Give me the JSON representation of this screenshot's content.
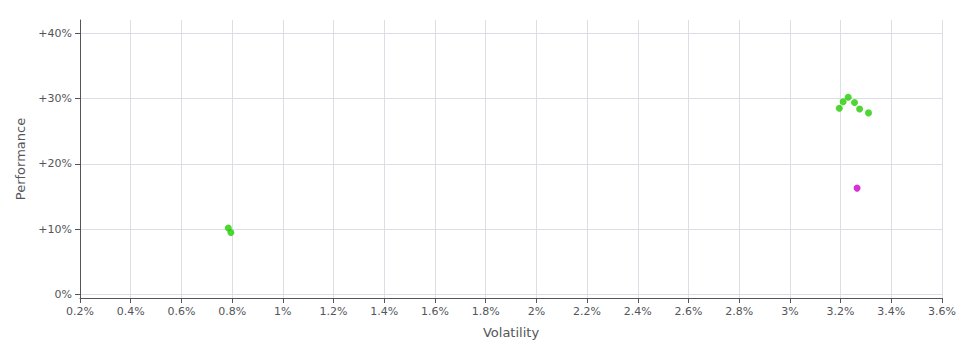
{
  "chart_data": {
    "type": "scatter",
    "xlabel": "Volatility",
    "ylabel": "Performance",
    "series": [
      {
        "color": "#22cc00",
        "x": [
          0.00785,
          0.00795,
          0.03195,
          0.0321,
          0.0323,
          0.03255,
          0.03275,
          0.0331
        ],
        "values": [
          0.102,
          0.095,
          0.285,
          0.295,
          0.302,
          0.294,
          0.284,
          0.278
        ]
      },
      {
        "color": "#cc00cc",
        "x": [
          0.03265
        ],
        "values": [
          0.163
        ]
      }
    ],
    "xlim": [
      0.002,
      0.036
    ],
    "xticks": [
      {
        "value": 0.002,
        "label": "0.2%"
      },
      {
        "value": 0.004,
        "label": "0.4%"
      },
      {
        "value": 0.006,
        "label": "0.6%"
      },
      {
        "value": 0.008,
        "label": "0.8%"
      },
      {
        "value": 0.01,
        "label": "1%"
      },
      {
        "value": 0.012,
        "label": "1.2%"
      },
      {
        "value": 0.014,
        "label": "1.4%"
      },
      {
        "value": 0.016,
        "label": "1.6%"
      },
      {
        "value": 0.018,
        "label": "1.8%"
      },
      {
        "value": 0.02,
        "label": "2%"
      },
      {
        "value": 0.022,
        "label": "2.2%"
      },
      {
        "value": 0.024,
        "label": "2.4%"
      },
      {
        "value": 0.026,
        "label": "2.6%"
      },
      {
        "value": 0.028,
        "label": "2.8%"
      },
      {
        "value": 0.03,
        "label": "3%"
      },
      {
        "value": 0.032,
        "label": "3.2%"
      },
      {
        "value": 0.034,
        "label": "3.4%"
      },
      {
        "value": 0.036,
        "label": "3.6%"
      }
    ],
    "ylim": [
      -0.005,
      0.42
    ],
    "yticks": [
      {
        "value": 0.0,
        "label": "0%"
      },
      {
        "value": 0.1,
        "label": "+10%"
      },
      {
        "value": 0.2,
        "label": "+20%"
      },
      {
        "value": 0.3,
        "label": "+30%"
      },
      {
        "value": 0.4,
        "label": "+40%"
      }
    ],
    "grid": true
  }
}
